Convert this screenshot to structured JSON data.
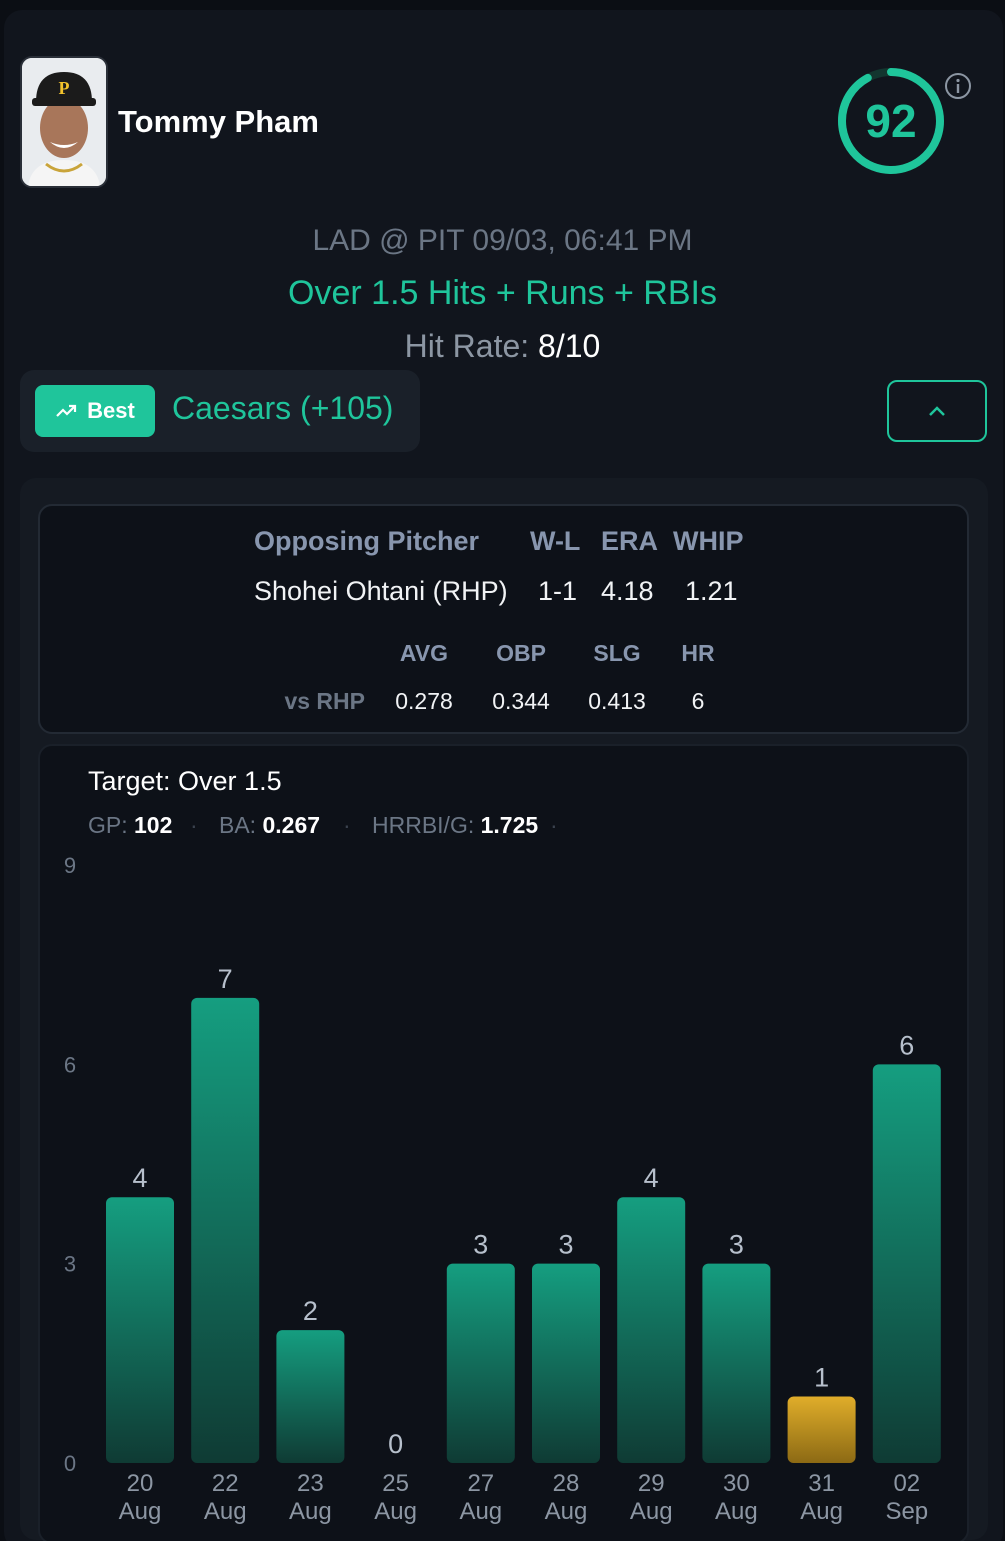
{
  "player": {
    "name": "Tommy Pham",
    "score": "92"
  },
  "game": {
    "matchup": "LAD @ PIT 09/03, 06:41 PM"
  },
  "prop": {
    "label": "Over 1.5 Hits + Runs + RBIs"
  },
  "hit_rate": {
    "label": "Hit Rate:",
    "value": "8/10"
  },
  "book": {
    "best_label": "Best",
    "name": "Caesars (+105)"
  },
  "pitcher": {
    "headers": [
      "Opposing Pitcher",
      "W-L",
      "ERA",
      "WHIP"
    ],
    "values": [
      "Shohei Ohtani (RHP)",
      "1-1",
      "4.18",
      "1.21"
    ],
    "split_headers": [
      "AVG",
      "OBP",
      "SLG",
      "HR"
    ],
    "split_label": "vs RHP",
    "split_values": [
      "0.278",
      "0.344",
      "0.413",
      "6"
    ]
  },
  "stats": {
    "target": "Target: Over 1.5",
    "gp_label": "GP:",
    "gp": "102",
    "ba_label": "BA:",
    "ba": "0.267",
    "hrrbi_label": "HRRBI/G:",
    "hrrbi": "1.725"
  },
  "colors": {
    "accent": "#1fc59b",
    "miss": "#d9a626",
    "bar_top": "#159e80",
    "bar_bottom": "#0f3b34"
  },
  "chart_data": {
    "type": "bar",
    "categories": [
      [
        "20",
        "Aug"
      ],
      [
        "22",
        "Aug"
      ],
      [
        "23",
        "Aug"
      ],
      [
        "25",
        "Aug"
      ],
      [
        "27",
        "Aug"
      ],
      [
        "28",
        "Aug"
      ],
      [
        "29",
        "Aug"
      ],
      [
        "30",
        "Aug"
      ],
      [
        "31",
        "Aug"
      ],
      [
        "02",
        "Sep"
      ]
    ],
    "values": [
      4,
      7,
      2,
      0,
      3,
      3,
      4,
      3,
      1,
      6
    ],
    "yticks": [
      0,
      3,
      6,
      9
    ],
    "ylim": [
      0,
      9
    ],
    "target": 1.5
  }
}
